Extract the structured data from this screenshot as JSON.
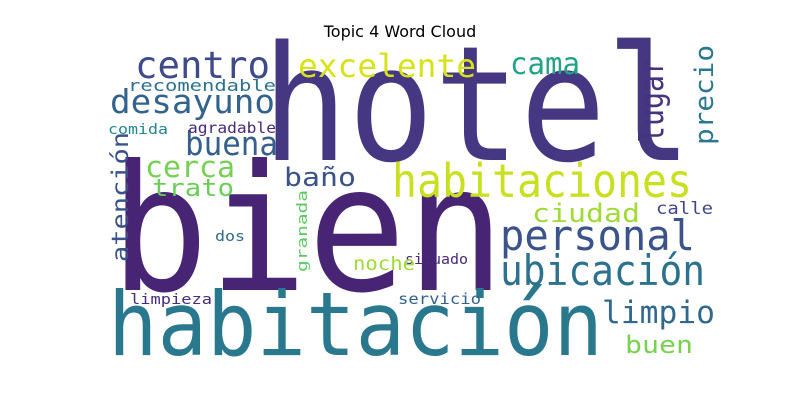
{
  "title": "Topic 4 Word Cloud",
  "words": [
    {
      "text": "hotel",
      "color": "#453781"
    },
    {
      "text": "bien",
      "color": "#482475"
    },
    {
      "text": "habitación",
      "color": "#2a788e"
    },
    {
      "text": "habitaciones",
      "color": "#c8e020"
    },
    {
      "text": "personal",
      "color": "#3b528b"
    },
    {
      "text": "ubicación",
      "color": "#2c728e"
    },
    {
      "text": "desayuno",
      "color": "#33638d"
    },
    {
      "text": "centro",
      "color": "#3e4a89"
    },
    {
      "text": "excelente",
      "color": "#d8e219"
    },
    {
      "text": "cama",
      "color": "#20a386"
    },
    {
      "text": "buena",
      "color": "#355f8d"
    },
    {
      "text": "lugar",
      "color": "#46327e"
    },
    {
      "text": "precio",
      "color": "#2a778e"
    },
    {
      "text": "limpio",
      "color": "#31688e"
    },
    {
      "text": "cerca",
      "color": "#75d054"
    },
    {
      "text": "trato",
      "color": "#6ccd5a"
    },
    {
      "text": "baño",
      "color": "#3b528b"
    },
    {
      "text": "ciudad",
      "color": "#a2da37"
    },
    {
      "text": "atención",
      "color": "#3b528b"
    },
    {
      "text": "buen",
      "color": "#7ad151"
    },
    {
      "text": "recomendable",
      "color": "#2d708e"
    },
    {
      "text": "agradable",
      "color": "#472a7a"
    },
    {
      "text": "comida",
      "color": "#25858e"
    },
    {
      "text": "calle",
      "color": "#404688"
    },
    {
      "text": "granada",
      "color": "#5ec962"
    },
    {
      "text": "dos",
      "color": "#31688e"
    },
    {
      "text": "situado",
      "color": "#482878"
    },
    {
      "text": "noche",
      "color": "#a0da39"
    },
    {
      "text": "limpieza",
      "color": "#472d7b"
    },
    {
      "text": "servicio",
      "color": "#33638d"
    }
  ]
}
